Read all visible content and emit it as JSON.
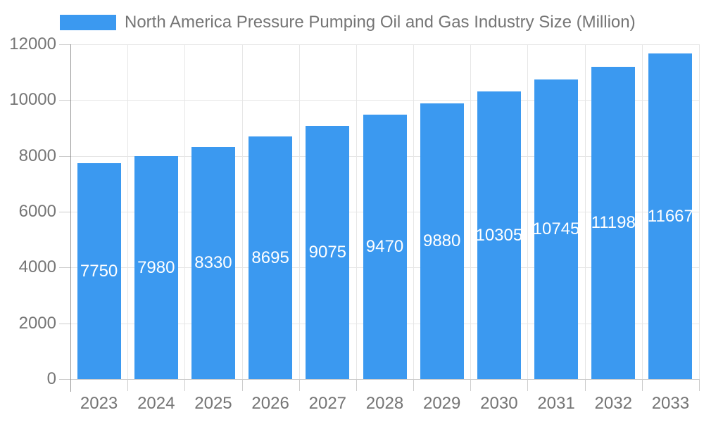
{
  "legend": {
    "label": "North America Pressure Pumping Oil and Gas Industry Size (Million)",
    "swatch_color": "#3B99F0"
  },
  "colors": {
    "bar": "#3B99F0",
    "grid": "#E6E6E6",
    "tick": "#CCCCCC",
    "axis_line": "#999999",
    "text": "#757575",
    "value_label": "#FFFFFF",
    "background": "#FFFFFF"
  },
  "chart_data": {
    "type": "bar",
    "title": "North America Pressure Pumping Oil and Gas Industry Size (Million)",
    "categories": [
      "2023",
      "2024",
      "2025",
      "2026",
      "2027",
      "2028",
      "2029",
      "2030",
      "2031",
      "2032",
      "2033"
    ],
    "values": [
      7750,
      7980,
      8330,
      8695,
      9075,
      9470,
      9880,
      10305,
      10745,
      11198,
      11667
    ],
    "xlabel": "",
    "ylabel": "",
    "ylim": [
      0,
      12000
    ],
    "yticks": [
      0,
      2000,
      4000,
      6000,
      8000,
      10000,
      12000
    ],
    "grid": true,
    "legend_position": "top-left",
    "value_labels": "inside-middle",
    "bar_color": "#3B99F0",
    "value_label_color": "#FFFFFF"
  }
}
